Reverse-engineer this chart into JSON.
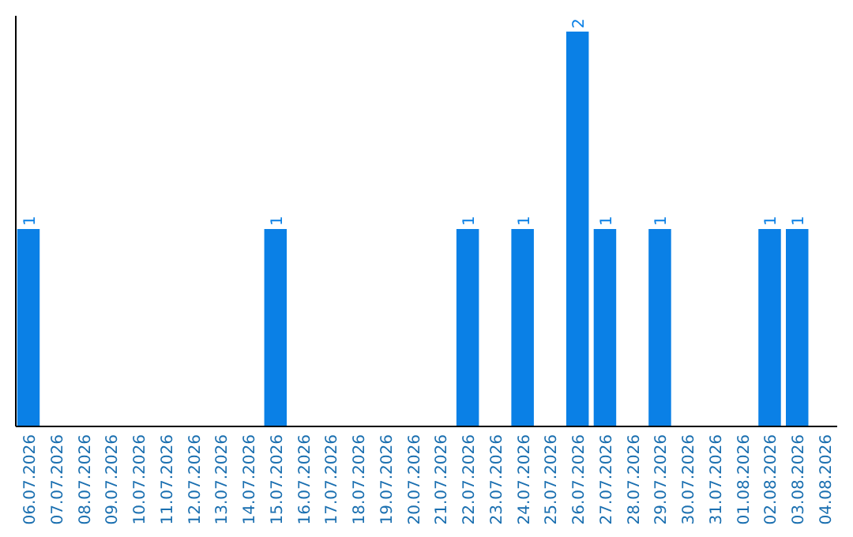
{
  "chart_data": {
    "type": "bar",
    "categories": [
      "06.07.2026",
      "07.07.2026",
      "08.07.2026",
      "09.07.2026",
      "10.07.2026",
      "11.07.2026",
      "12.07.2026",
      "13.07.2026",
      "14.07.2026",
      "15.07.2026",
      "16.07.2026",
      "17.07.2026",
      "18.07.2026",
      "19.07.2026",
      "20.07.2026",
      "21.07.2026",
      "22.07.2026",
      "23.07.2026",
      "24.07.2026",
      "25.07.2026",
      "26.07.2026",
      "27.07.2026",
      "28.07.2026",
      "29.07.2026",
      "30.07.2026",
      "31.07.2026",
      "01.08.2026",
      "02.08.2026",
      "03.08.2026",
      "04.08.2026"
    ],
    "values": [
      1,
      0,
      0,
      0,
      0,
      0,
      0,
      0,
      0,
      1,
      0,
      0,
      0,
      0,
      0,
      0,
      1,
      0,
      1,
      0,
      2,
      1,
      0,
      1,
      0,
      0,
      0,
      1,
      1,
      0
    ],
    "value_labels": [
      "1",
      null,
      null,
      null,
      null,
      null,
      null,
      null,
      null,
      "1",
      null,
      null,
      null,
      null,
      null,
      null,
      "1",
      null,
      "1",
      null,
      "2",
      "1",
      null,
      "1",
      null,
      null,
      null,
      "1",
      "1",
      null
    ],
    "color": "#0a80e6",
    "tick_labels": "x"
  }
}
